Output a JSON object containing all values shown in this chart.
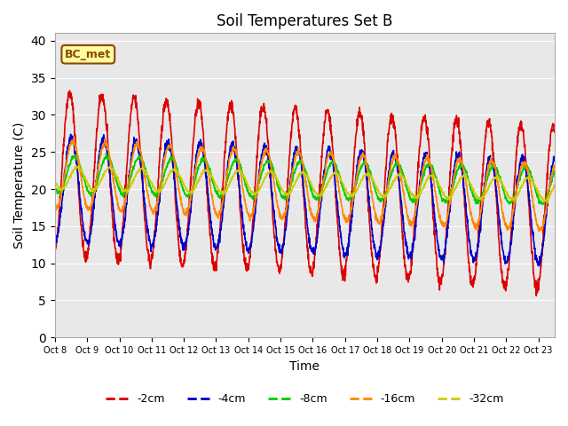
{
  "title": "Soil Temperatures Set B",
  "xlabel": "Time",
  "ylabel": "Soil Temperature (C)",
  "ylim": [
    0,
    41
  ],
  "legend_label": "BC_met",
  "colors": {
    "-2cm": "#dd0000",
    "-4cm": "#0000cc",
    "-8cm": "#00cc00",
    "-16cm": "#ff8800",
    "-32cm": "#cccc00"
  },
  "bg_color": "#e8e8e8",
  "xtick_labels": [
    "Oct 8",
    "Oct 9",
    "Oct 10",
    "Oct 11",
    "Oct 12",
    "Oct 13",
    "Oct 14",
    "Oct 15",
    "Oct 16",
    "Oct 17",
    "Oct 18",
    "Oct 19",
    "Oct 20",
    "Oct 21",
    "Oct 22",
    "Oct 23"
  ],
  "ytick_values": [
    0,
    5,
    10,
    15,
    20,
    25,
    30,
    35,
    40
  ]
}
